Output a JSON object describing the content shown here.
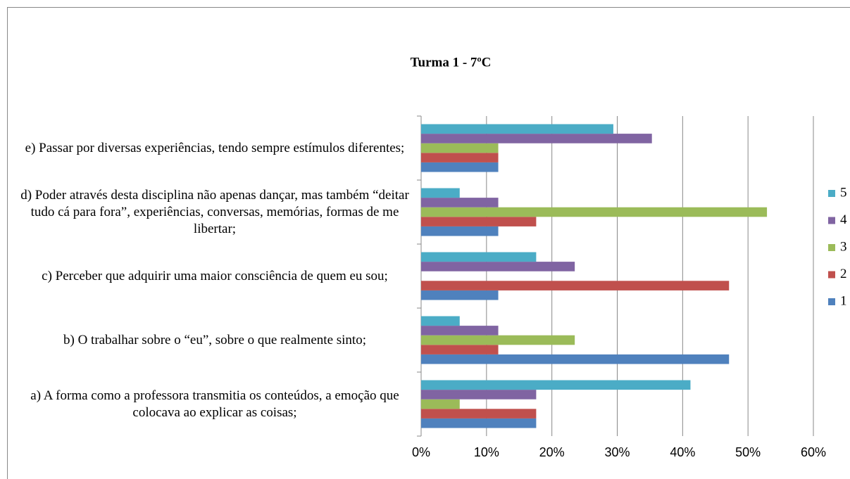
{
  "chart_data": {
    "type": "barh",
    "title": "Turma 1 - 7ºC",
    "categories": [
      "a) A forma como a professora transmitia os conteúdos, a emoção que colocava ao explicar as coisas;",
      "b) O trabalhar sobre o “eu”, sobre o que realmente sinto;",
      "c) Perceber que adquirir uma maior consciência de quem eu sou;",
      "d) Poder através desta disciplina não apenas dançar, mas também “deitar tudo cá para fora”, experiências, conversas, memórias, formas de me libertar;",
      "e) Passar por diversas experiências, tendo sempre estímulos diferentes;"
    ],
    "series": [
      {
        "name": "1",
        "color": "#4f81bd",
        "values": [
          17.6,
          47.1,
          11.8,
          11.8,
          11.8
        ]
      },
      {
        "name": "2",
        "color": "#c0504d",
        "values": [
          17.6,
          11.8,
          47.1,
          17.6,
          11.8
        ]
      },
      {
        "name": "3",
        "color": "#9bbb59",
        "values": [
          5.9,
          23.5,
          0,
          52.9,
          11.8
        ]
      },
      {
        "name": "4",
        "color": "#8064a2",
        "values": [
          17.6,
          11.8,
          23.5,
          11.8,
          35.3
        ]
      },
      {
        "name": "5",
        "color": "#4bacc6",
        "values": [
          41.2,
          5.9,
          17.6,
          5.9,
          29.4
        ]
      }
    ],
    "xlim": [
      0,
      60
    ],
    "xticks": [
      {
        "value": 0,
        "label": "0%"
      },
      {
        "value": 10,
        "label": "10%"
      },
      {
        "value": 20,
        "label": "20%"
      },
      {
        "value": 30,
        "label": "30%"
      },
      {
        "value": 40,
        "label": "40%"
      },
      {
        "value": 50,
        "label": "50%"
      },
      {
        "value": 60,
        "label": "60%"
      }
    ],
    "grid": true,
    "legend": "right"
  }
}
